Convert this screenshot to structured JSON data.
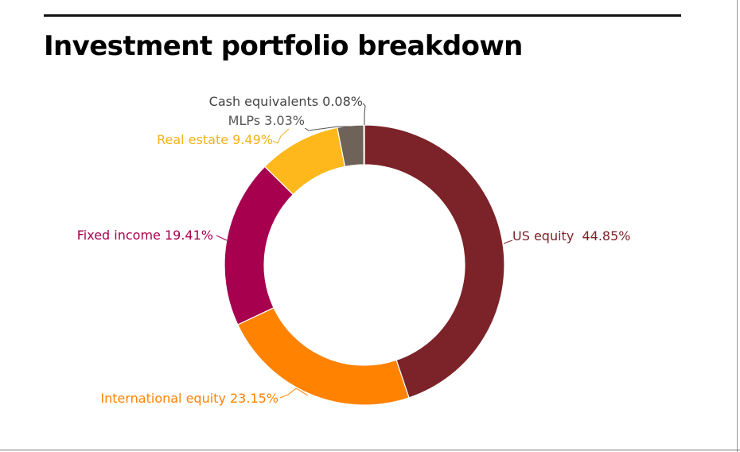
{
  "title": "Investment portfolio breakdown",
  "chart_data": {
    "type": "pie",
    "donut": true,
    "title": "Investment portfolio breakdown",
    "slices": [
      {
        "name": "US equity",
        "value": 44.85,
        "label": "US equity  44.85%",
        "color": "#7b2328",
        "label_color": "#7b2328"
      },
      {
        "name": "International equity",
        "value": 23.15,
        "label": "International equity 23.15%",
        "color": "#ff8200",
        "label_color": "#ff8200"
      },
      {
        "name": "Fixed income",
        "value": 19.41,
        "label": "Fixed income 19.41%",
        "color": "#a6004f",
        "label_color": "#a6004f"
      },
      {
        "name": "Real estate",
        "value": 9.49,
        "label": "Real estate 9.49%",
        "color": "#ffb81c",
        "label_color": "#f2b21c"
      },
      {
        "name": "MLPs",
        "value": 3.03,
        "label": "MLPs 3.03%",
        "color": "#6e6259",
        "label_color": "#555555"
      },
      {
        "name": "Cash equivalents",
        "value": 0.08,
        "label": "Cash equivalents 0.08%",
        "color": "#3a3a3a",
        "label_color": "#444444"
      }
    ]
  }
}
